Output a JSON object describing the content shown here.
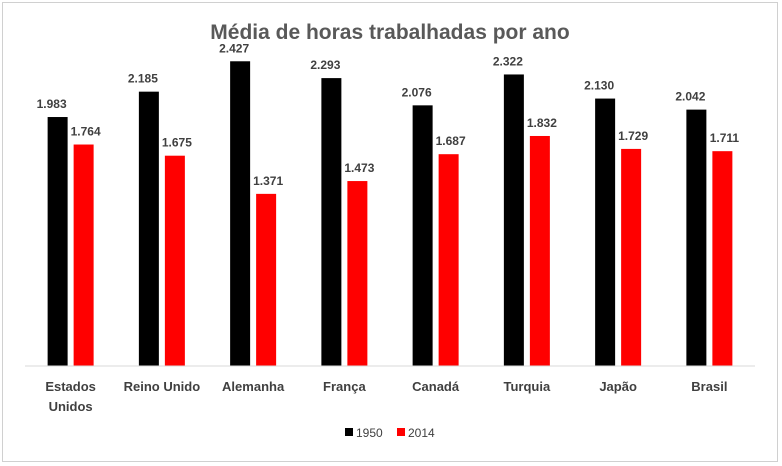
{
  "chart_data": {
    "type": "bar",
    "title": "Média de horas trabalhadas por ano",
    "categories": [
      "Estados Unidos",
      "Reino Unido",
      "Alemanha",
      "França",
      "Canadá",
      "Turquia",
      "Japão",
      "Brasil"
    ],
    "series": [
      {
        "name": "1950",
        "color": "#000000",
        "values": [
          1983,
          2185,
          2427,
          2293,
          2076,
          2322,
          2130,
          2042
        ],
        "labels": [
          "1.983",
          "2.185",
          "2.427",
          "2.293",
          "2.076",
          "2.322",
          "2.130",
          "2.042"
        ]
      },
      {
        "name": "2014",
        "color": "#ff0000",
        "values": [
          1764,
          1675,
          1371,
          1473,
          1687,
          1832,
          1729,
          1711
        ],
        "labels": [
          "1.764",
          "1.675",
          "1.371",
          "1.473",
          "1.687",
          "1.832",
          "1.729",
          "1.711"
        ]
      }
    ],
    "ylim": [
      0,
      2700
    ],
    "grid": false,
    "y_axis_visible": false,
    "legend_position": "bottom"
  }
}
